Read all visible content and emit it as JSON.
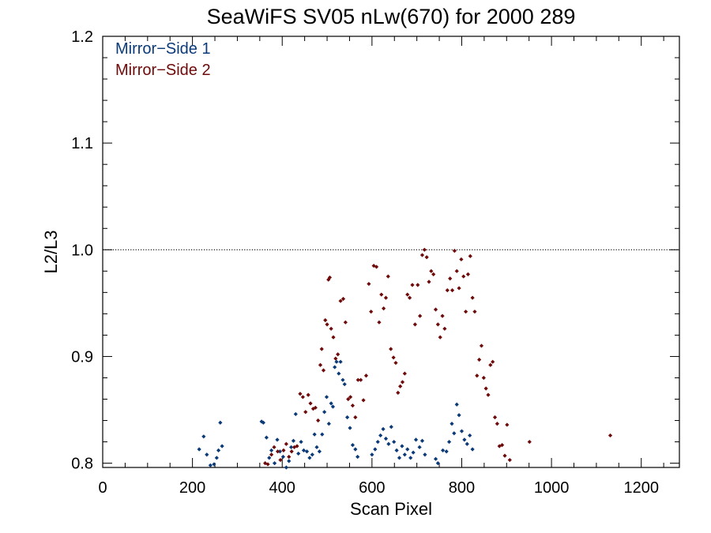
{
  "chart_data": {
    "type": "scatter",
    "title": "SeaWiFS SV05 nLw(670) for 2000 289",
    "xlabel": "Scan Pixel",
    "ylabel": "L2/L3",
    "xlim": [
      0,
      1285
    ],
    "ylim": [
      0.796,
      1.2
    ],
    "x_ticks": [
      0,
      200,
      400,
      600,
      800,
      1000,
      1200
    ],
    "x_tick_labels": [
      "0",
      "200",
      "400",
      "600",
      "800",
      "1000",
      "1200"
    ],
    "y_ticks": [
      0.8,
      0.9,
      1.0,
      1.1,
      1.2
    ],
    "y_tick_labels": [
      "0.8",
      "0.9",
      "1.0",
      "1.1",
      "1.2"
    ],
    "reference_line": {
      "y": 1.0,
      "style": "dotted"
    },
    "legend_placement": "top-left",
    "series": [
      {
        "name": "Mirror−Side 1",
        "color": "#0b3a78",
        "points": [
          [
            215,
            0.813
          ],
          [
            225,
            0.825
          ],
          [
            232,
            0.808
          ],
          [
            240,
            0.798
          ],
          [
            248,
            0.799
          ],
          [
            254,
            0.805
          ],
          [
            258,
            0.812
          ],
          [
            262,
            0.838
          ],
          [
            266,
            0.816
          ],
          [
            354,
            0.839
          ],
          [
            358,
            0.838
          ],
          [
            365,
            0.824
          ],
          [
            371,
            0.805
          ],
          [
            376,
            0.812
          ],
          [
            383,
            0.8
          ],
          [
            389,
            0.822
          ],
          [
            395,
            0.811
          ],
          [
            402,
            0.806
          ],
          [
            409,
            0.796
          ],
          [
            415,
            0.802
          ],
          [
            420,
            0.815
          ],
          [
            425,
            0.821
          ],
          [
            430,
            0.846
          ],
          [
            436,
            0.809
          ],
          [
            442,
            0.82
          ],
          [
            448,
            0.812
          ],
          [
            455,
            0.811
          ],
          [
            461,
            0.805
          ],
          [
            467,
            0.808
          ],
          [
            472,
            0.827
          ],
          [
            477,
            0.815
          ],
          [
            483,
            0.811
          ],
          [
            489,
            0.827
          ],
          [
            494,
            0.848
          ],
          [
            499,
            0.862
          ],
          [
            504,
            0.837
          ],
          [
            509,
            0.856
          ],
          [
            513,
            0.853
          ],
          [
            517,
            0.89
          ],
          [
            521,
            0.895
          ],
          [
            526,
            0.884
          ],
          [
            530,
            0.895
          ],
          [
            535,
            0.878
          ],
          [
            539,
            0.874
          ],
          [
            545,
            0.843
          ],
          [
            551,
            0.833
          ],
          [
            557,
            0.817
          ],
          [
            563,
            0.813
          ],
          [
            568,
            0.806
          ],
          [
            600,
            0.808
          ],
          [
            607,
            0.813
          ],
          [
            613,
            0.82
          ],
          [
            619,
            0.826
          ],
          [
            625,
            0.832
          ],
          [
            631,
            0.823
          ],
          [
            637,
            0.818
          ],
          [
            643,
            0.834
          ],
          [
            649,
            0.82
          ],
          [
            655,
            0.812
          ],
          [
            661,
            0.805
          ],
          [
            667,
            0.816
          ],
          [
            673,
            0.808
          ],
          [
            679,
            0.813
          ],
          [
            686,
            0.805
          ],
          [
            692,
            0.81
          ],
          [
            698,
            0.822
          ],
          [
            706,
            0.815
          ],
          [
            712,
            0.821
          ],
          [
            718,
            0.808
          ],
          [
            742,
            0.804
          ],
          [
            747,
            0.8
          ],
          [
            758,
            0.812
          ],
          [
            766,
            0.811
          ],
          [
            772,
            0.82
          ],
          [
            778,
            0.837
          ],
          [
            783,
            0.828
          ],
          [
            789,
            0.855
          ],
          [
            794,
            0.845
          ],
          [
            800,
            0.83
          ],
          [
            806,
            0.822
          ],
          [
            812,
            0.818
          ],
          [
            818,
            0.826
          ],
          [
            824,
            0.813
          ]
        ]
      },
      {
        "name": "Mirror−Side 2",
        "color": "#6e0a0a",
        "points": [
          [
            362,
            0.8
          ],
          [
            368,
            0.799
          ],
          [
            376,
            0.808
          ],
          [
            382,
            0.815
          ],
          [
            390,
            0.811
          ],
          [
            396,
            0.803
          ],
          [
            403,
            0.812
          ],
          [
            409,
            0.818
          ],
          [
            415,
            0.806
          ],
          [
            421,
            0.811
          ],
          [
            427,
            0.815
          ],
          [
            433,
            0.816
          ],
          [
            440,
            0.865
          ],
          [
            446,
            0.862
          ],
          [
            452,
            0.848
          ],
          [
            458,
            0.864
          ],
          [
            463,
            0.856
          ],
          [
            469,
            0.851
          ],
          [
            474,
            0.852
          ],
          [
            480,
            0.84
          ],
          [
            485,
            0.892
          ],
          [
            488,
            0.907
          ],
          [
            492,
            0.887
          ],
          [
            496,
            0.934
          ],
          [
            500,
            0.93
          ],
          [
            503,
            0.972
          ],
          [
            506,
            0.974
          ],
          [
            509,
            0.926
          ],
          [
            514,
            0.918
          ],
          [
            519,
            0.898
          ],
          [
            524,
            0.902
          ],
          [
            530,
            0.952
          ],
          [
            536,
            0.954
          ],
          [
            541,
            0.932
          ],
          [
            547,
            0.86
          ],
          [
            552,
            0.862
          ],
          [
            557,
            0.854
          ],
          [
            563,
            0.843
          ],
          [
            569,
            0.878
          ],
          [
            575,
            0.878
          ],
          [
            581,
            0.859
          ],
          [
            587,
            0.882
          ],
          [
            593,
            0.968
          ],
          [
            598,
            0.942
          ],
          [
            604,
            0.985
          ],
          [
            610,
            0.984
          ],
          [
            616,
            0.932
          ],
          [
            621,
            0.958
          ],
          [
            626,
            0.945
          ],
          [
            631,
            0.955
          ],
          [
            636,
            0.975
          ],
          [
            642,
            0.907
          ],
          [
            648,
            0.899
          ],
          [
            653,
            0.894
          ],
          [
            658,
            0.866
          ],
          [
            663,
            0.872
          ],
          [
            668,
            0.876
          ],
          [
            673,
            0.884
          ],
          [
            679,
            0.958
          ],
          [
            684,
            0.955
          ],
          [
            690,
            0.967
          ],
          [
            696,
            0.93
          ],
          [
            702,
            0.967
          ],
          [
            707,
            0.938
          ],
          [
            712,
            0.995
          ],
          [
            717,
            1.0
          ],
          [
            722,
            0.993
          ],
          [
            727,
            0.97
          ],
          [
            732,
            0.98
          ],
          [
            737,
            0.977
          ],
          [
            742,
            0.944
          ],
          [
            747,
            0.93
          ],
          [
            752,
            0.918
          ],
          [
            757,
            0.938
          ],
          [
            762,
            0.926
          ],
          [
            768,
            0.962
          ],
          [
            774,
            0.973
          ],
          [
            779,
            0.962
          ],
          [
            784,
            0.999
          ],
          [
            789,
            0.98
          ],
          [
            794,
            0.964
          ],
          [
            799,
            0.991
          ],
          [
            804,
            0.975
          ],
          [
            809,
            0.942
          ],
          [
            814,
            0.977
          ],
          [
            819,
            0.994
          ],
          [
            824,
            0.955
          ],
          [
            829,
            0.942
          ],
          [
            834,
            0.882
          ],
          [
            839,
            0.897
          ],
          [
            844,
            0.91
          ],
          [
            849,
            0.88
          ],
          [
            854,
            0.87
          ],
          [
            859,
            0.864
          ],
          [
            864,
            0.892
          ],
          [
            869,
            0.895
          ],
          [
            874,
            0.843
          ],
          [
            879,
            0.837
          ],
          [
            884,
            0.816
          ],
          [
            890,
            0.817
          ],
          [
            896,
            0.807
          ],
          [
            901,
            0.836
          ],
          [
            907,
            0.803
          ],
          [
            951,
            0.82
          ],
          [
            1131,
            0.826
          ]
        ]
      }
    ]
  }
}
